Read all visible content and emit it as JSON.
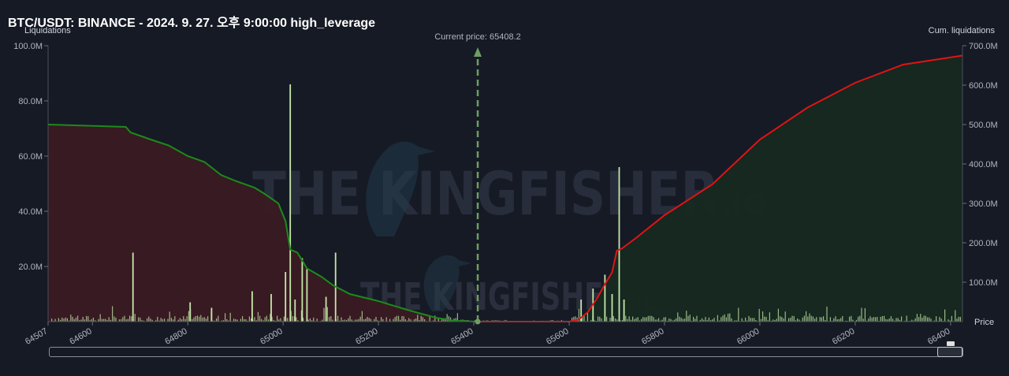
{
  "header": {
    "title": "BTC/USDT: BINANCE - 2024. 9. 27. 오후 9:00:00 high_leverage"
  },
  "watermark": {
    "brand": "THE KINGFISHER",
    "suffix": ".IO"
  },
  "colors": {
    "background": "#161a25",
    "long_cum_line": "#1a8c1a",
    "long_area": "#3a1a22",
    "short_cum_line": "#e01414",
    "short_area": "#16291f",
    "bars": "#c5e8a8",
    "current_price_line": "#6e9e62"
  },
  "chart_data": {
    "type": "bar",
    "title": "BTC/USDT: BINANCE - 2024. 9. 27. 오후 9:00:00 high_leverage",
    "y_left_label": "Liquidations",
    "y_right_label": "Cum. liquidations",
    "x_label": "Price",
    "current_price_label": "Current price: 65408.2",
    "current_price": 65408.2,
    "x_range": [
      64507,
      66425
    ],
    "x_ticks": [
      64507,
      64600,
      64800,
      65000,
      65200,
      65400,
      65600,
      65800,
      66000,
      66200,
      66400
    ],
    "y_left_ticks": [
      "20.0M",
      "40.0M",
      "60.0M",
      "80.0M",
      "100.0M"
    ],
    "y_left_tick_values": [
      20,
      40,
      60,
      80,
      100
    ],
    "y_left_range": [
      0,
      100
    ],
    "y_right_ticks": [
      "100.0M",
      "200.0M",
      "300.0M",
      "400.0M",
      "500.0M",
      "600.0M",
      "700.0M"
    ],
    "y_right_tick_values": [
      100,
      200,
      300,
      400,
      500,
      600,
      700
    ],
    "y_right_range": [
      0,
      700
    ],
    "major_bars": [
      {
        "price": 64685,
        "value": 25
      },
      {
        "price": 64805,
        "value": 7
      },
      {
        "price": 64850,
        "value": 5
      },
      {
        "price": 64935,
        "value": 11
      },
      {
        "price": 64975,
        "value": 10
      },
      {
        "price": 65005,
        "value": 18
      },
      {
        "price": 65015,
        "value": 86
      },
      {
        "price": 65025,
        "value": 8
      },
      {
        "price": 65040,
        "value": 23
      },
      {
        "price": 65050,
        "value": 19
      },
      {
        "price": 65090,
        "value": 9
      },
      {
        "price": 65110,
        "value": 25
      },
      {
        "price": 65625,
        "value": 8
      },
      {
        "price": 65650,
        "value": 12
      },
      {
        "price": 65675,
        "value": 17
      },
      {
        "price": 65690,
        "value": 10
      },
      {
        "price": 65705,
        "value": 56
      },
      {
        "price": 65715,
        "value": 8
      }
    ],
    "cum_long": [
      [
        64507,
        500
      ],
      [
        64670,
        494
      ],
      [
        64680,
        480
      ],
      [
        64720,
        463
      ],
      [
        64760,
        447
      ],
      [
        64800,
        420
      ],
      [
        64835,
        405
      ],
      [
        64870,
        372
      ],
      [
        64900,
        357
      ],
      [
        64940,
        340
      ],
      [
        64960,
        325
      ],
      [
        64990,
        300
      ],
      [
        65005,
        255
      ],
      [
        65015,
        183
      ],
      [
        65030,
        175
      ],
      [
        65050,
        135
      ],
      [
        65080,
        114
      ],
      [
        65105,
        92
      ],
      [
        65140,
        70
      ],
      [
        65200,
        52
      ],
      [
        65260,
        30
      ],
      [
        65320,
        10
      ],
      [
        65360,
        2
      ],
      [
        65408.2,
        0
      ]
    ],
    "cum_short": [
      [
        65408.2,
        0
      ],
      [
        65600,
        0
      ],
      [
        65620,
        5
      ],
      [
        65640,
        25
      ],
      [
        65660,
        62
      ],
      [
        65675,
        95
      ],
      [
        65690,
        125
      ],
      [
        65700,
        180
      ],
      [
        65710,
        185
      ],
      [
        65740,
        212
      ],
      [
        65800,
        270
      ],
      [
        65900,
        348
      ],
      [
        66000,
        462
      ],
      [
        66100,
        543
      ],
      [
        66200,
        606
      ],
      [
        66300,
        652
      ],
      [
        66425,
        675
      ]
    ]
  },
  "scrollbar": {
    "label": "scroll"
  }
}
